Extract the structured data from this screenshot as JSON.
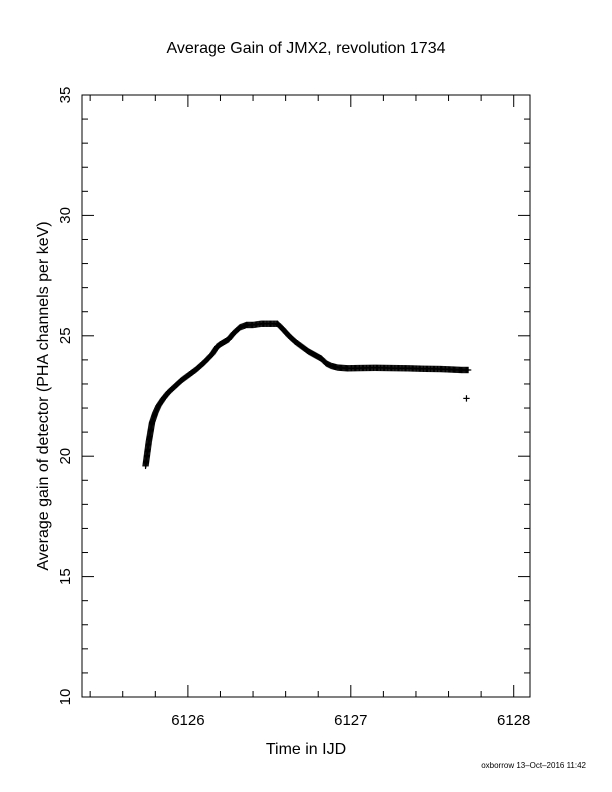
{
  "chart_data": {
    "type": "scatter",
    "title": "Average Gain of JMX2, revolution 1734",
    "xlabel": "Time in IJD",
    "ylabel": "Average gain of detector (PHA channels per keV)",
    "xlim": [
      6125.35,
      6128.1
    ],
    "ylim": [
      10,
      35
    ],
    "x_ticks": [
      "6126",
      "6127",
      "6128"
    ],
    "y_ticks": [
      "10",
      "15",
      "20",
      "25",
      "30",
      "35"
    ],
    "grid": false,
    "marker": "plus",
    "series": [
      {
        "points": [
          [
            6125.74,
            19.6
          ],
          [
            6125.75,
            20.1
          ],
          [
            6125.76,
            20.6
          ],
          [
            6125.77,
            21.0
          ],
          [
            6125.78,
            21.4
          ],
          [
            6125.8,
            21.8
          ],
          [
            6125.82,
            22.1
          ],
          [
            6125.85,
            22.4
          ],
          [
            6125.88,
            22.65
          ],
          [
            6125.92,
            22.9
          ],
          [
            6125.96,
            23.15
          ],
          [
            6126.0,
            23.35
          ],
          [
            6126.05,
            23.6
          ],
          [
            6126.1,
            23.9
          ],
          [
            6126.15,
            24.25
          ],
          [
            6126.18,
            24.55
          ],
          [
            6126.2,
            24.65
          ],
          [
            6126.25,
            24.85
          ],
          [
            6126.28,
            25.1
          ],
          [
            6126.32,
            25.35
          ],
          [
            6126.36,
            25.45
          ],
          [
            6126.4,
            25.45
          ],
          [
            6126.45,
            25.5
          ],
          [
            6126.5,
            25.5
          ],
          [
            6126.55,
            25.5
          ],
          [
            6126.58,
            25.3
          ],
          [
            6126.62,
            25.0
          ],
          [
            6126.66,
            24.75
          ],
          [
            6126.7,
            24.55
          ],
          [
            6126.74,
            24.35
          ],
          [
            6126.78,
            24.2
          ],
          [
            6126.82,
            24.05
          ],
          [
            6126.85,
            23.85
          ],
          [
            6126.88,
            23.75
          ],
          [
            6126.92,
            23.68
          ],
          [
            6126.98,
            23.65
          ],
          [
            6127.05,
            23.66
          ],
          [
            6127.15,
            23.67
          ],
          [
            6127.25,
            23.66
          ],
          [
            6127.35,
            23.65
          ],
          [
            6127.45,
            23.63
          ],
          [
            6127.55,
            23.62
          ],
          [
            6127.62,
            23.6
          ],
          [
            6127.68,
            23.58
          ],
          [
            6127.72,
            23.58
          ],
          [
            6127.71,
            22.4
          ]
        ]
      }
    ]
  },
  "footer": {
    "credit": "oxborrow 13–Oct–2016 11:42"
  }
}
